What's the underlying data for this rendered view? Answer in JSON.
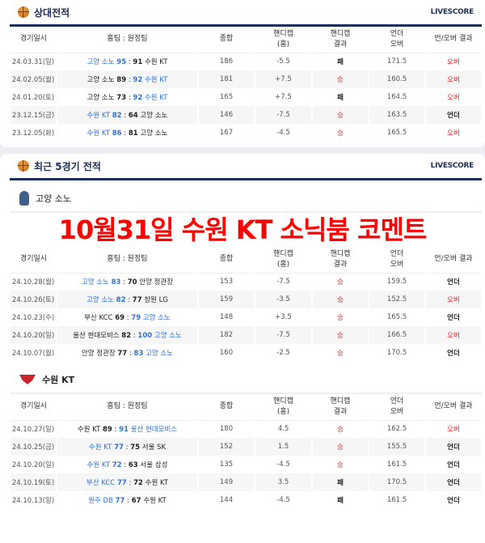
{
  "colors": {
    "navy": "#1c2f5c",
    "winner_blue": "#2f73d8",
    "red": "#e52222"
  },
  "columns": [
    "경기일시",
    "홈팀 : 원정팀",
    "종합",
    "핸디캡\n(홈)",
    "핸디캡\n결과",
    "언더\n오버",
    "언/오버 결과"
  ],
  "h2h": {
    "title": "상대전적",
    "icon": "basketball-icon",
    "live": "LIVESCORE",
    "rows": [
      {
        "date": "24.03.31(일)",
        "home": "고양 소노",
        "hs": "95",
        "as": "91",
        "away": "수원 KT",
        "winner": "home",
        "total": "186",
        "hcap": "-5.5",
        "hres": "패",
        "line": "171.5",
        "ou": "오버"
      },
      {
        "date": "24.02.05(월)",
        "home": "고양 소노",
        "hs": "89",
        "as": "92",
        "away": "수원 KT",
        "winner": "away",
        "total": "181",
        "hcap": "+7.5",
        "hres": "승",
        "line": "160.5",
        "ou": "오버"
      },
      {
        "date": "24.01.20(토)",
        "home": "고양 소노",
        "hs": "73",
        "as": "92",
        "away": "수원 KT",
        "winner": "away",
        "total": "165",
        "hcap": "+7.5",
        "hres": "패",
        "line": "164.5",
        "ou": "오버"
      },
      {
        "date": "23.12.15(금)",
        "home": "수원 KT",
        "hs": "82",
        "as": "64",
        "away": "고양 소노",
        "winner": "home",
        "total": "146",
        "hcap": "-7.5",
        "hres": "승",
        "line": "163.5",
        "ou": "언더"
      },
      {
        "date": "23.12.05(화)",
        "home": "수원 KT",
        "hs": "86",
        "as": "81",
        "away": "고양 소노",
        "winner": "home",
        "total": "167",
        "hcap": "-4.5",
        "hres": "승",
        "line": "165.5",
        "ou": "오버"
      }
    ]
  },
  "recent": {
    "title": "최근 5경기 전적",
    "icon": "basketball-icon",
    "live": "LIVESCORE"
  },
  "team1": {
    "name": "고양 소노",
    "rows": [
      {
        "date": "24.10.28(월)",
        "home": "고양 소노",
        "hs": "83",
        "as": "70",
        "away": "안양 정관장",
        "winner": "home",
        "total": "153",
        "hcap": "-7.5",
        "hres": "승",
        "line": "159.5",
        "ou": "언더"
      },
      {
        "date": "24.10.26(토)",
        "home": "고양 소노",
        "hs": "82",
        "as": "77",
        "away": "창원 LG",
        "winner": "home",
        "total": "159",
        "hcap": "-3.5",
        "hres": "승",
        "line": "152.5",
        "ou": "오버"
      },
      {
        "date": "24.10.23(수)",
        "home": "부산 KCC",
        "hs": "69",
        "as": "79",
        "away": "고양 소노",
        "winner": "away",
        "total": "148",
        "hcap": "+3.5",
        "hres": "승",
        "line": "165.5",
        "ou": "언더"
      },
      {
        "date": "24.10.20(일)",
        "home": "울산 현대모비스",
        "hs": "82",
        "as": "100",
        "away": "고양 소노",
        "winner": "away",
        "total": "182",
        "hcap": "-7.5",
        "hres": "승",
        "line": "166.5",
        "ou": "오버"
      },
      {
        "date": "24.10.07(월)",
        "home": "안양 정관장",
        "hs": "77",
        "as": "83",
        "away": "고양 소노",
        "winner": "away",
        "total": "160",
        "hcap": "-2.5",
        "hres": "승",
        "line": "170.5",
        "ou": "언더"
      }
    ]
  },
  "team2": {
    "name": "수원 KT",
    "rows": [
      {
        "date": "24.10.27(일)",
        "home": "수원 KT",
        "hs": "89",
        "as": "91",
        "away": "울산 현대모비스",
        "winner": "away",
        "total": "180",
        "hcap": "4.5",
        "hres": "승",
        "line": "162.5",
        "ou": "오버"
      },
      {
        "date": "24.10.25(금)",
        "home": "수원 KT",
        "hs": "77",
        "as": "75",
        "away": "서울 SK",
        "winner": "home",
        "total": "152",
        "hcap": "1.5",
        "hres": "승",
        "line": "155.5",
        "ou": "언더"
      },
      {
        "date": "24.10.20(일)",
        "home": "수원 KT",
        "hs": "72",
        "as": "63",
        "away": "서울 삼성",
        "winner": "home",
        "total": "135",
        "hcap": "-4.5",
        "hres": "승",
        "line": "161.5",
        "ou": "언더"
      },
      {
        "date": "24.10.19(토)",
        "home": "부산 KCC",
        "hs": "77",
        "as": "72",
        "away": "수원 KT",
        "winner": "home",
        "total": "149",
        "hcap": "3.5",
        "hres": "패",
        "line": "170.5",
        "ou": "언더"
      },
      {
        "date": "24.10.13(일)",
        "home": "원주 DB",
        "hs": "77",
        "as": "67",
        "away": "수원 KT",
        "winner": "home",
        "total": "144",
        "hcap": "-4.5",
        "hres": "패",
        "line": "161.5",
        "ou": "언더"
      }
    ]
  },
  "overlay": "10월31일 수원 KT 소닉붐 코멘트"
}
